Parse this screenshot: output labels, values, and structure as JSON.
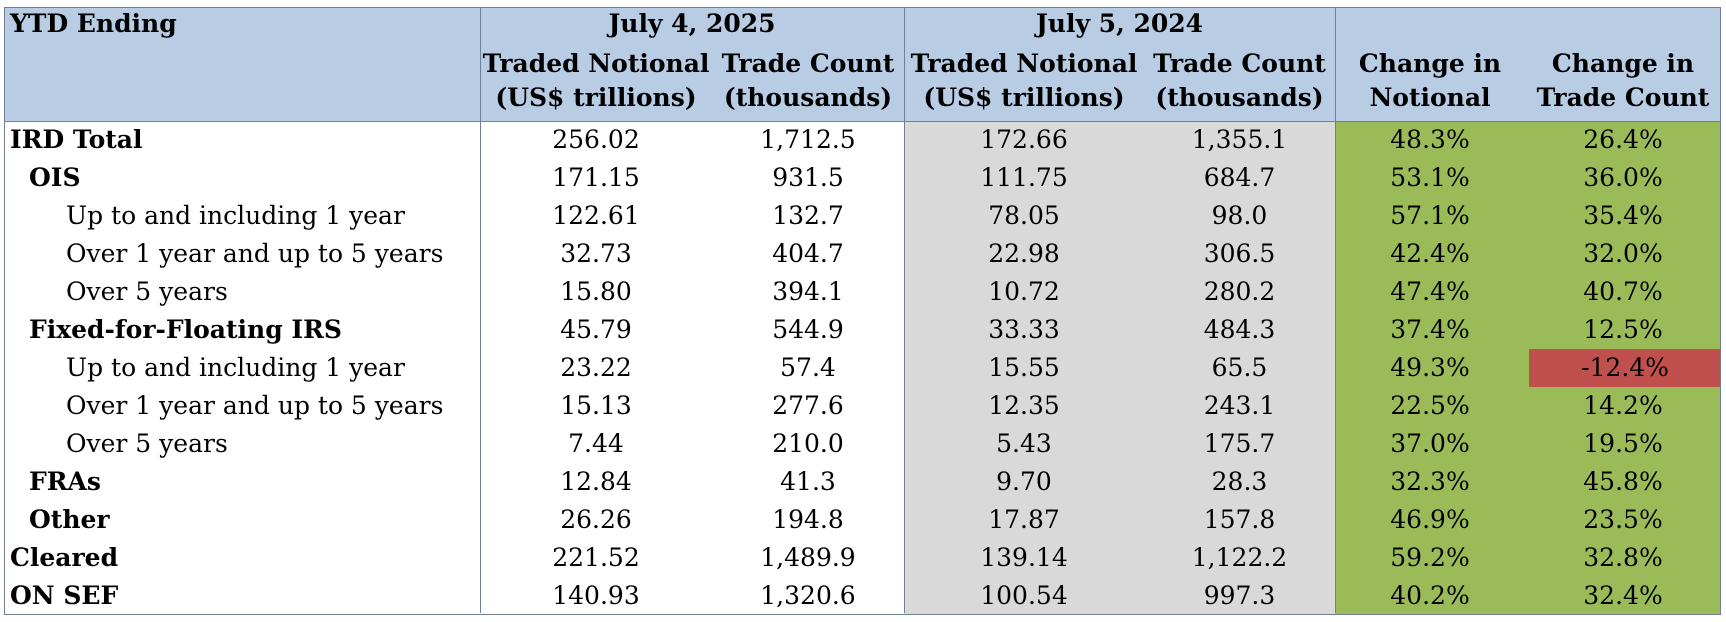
{
  "header": {
    "ytd_label": "YTD Ending",
    "period_2025": "July 4, 2025",
    "period_2024": "July 5, 2024",
    "notional_l1": "Traded Notional",
    "notional_l2": "(US$ trillions)",
    "count_l1": "Trade Count",
    "count_l2": "(thousands)",
    "chg_notional_l1": "Change in",
    "chg_notional_l2": "Notional",
    "chg_count_l1": "Change in",
    "chg_count_l2": "Trade Count"
  },
  "rows": [
    {
      "label": "IRD Total",
      "n25": "256.02",
      "c25": "1,712.5",
      "n24": "172.66",
      "c24": "1,355.1",
      "chn": "48.3%",
      "chc": "26.4%"
    },
    {
      "label": "OIS",
      "n25": "171.15",
      "c25": "931.5",
      "n24": "111.75",
      "c24": "684.7",
      "chn": "53.1%",
      "chc": "36.0%"
    },
    {
      "label": "Up to and including 1 year",
      "n25": "122.61",
      "c25": "132.7",
      "n24": "78.05",
      "c24": "98.0",
      "chn": "57.1%",
      "chc": "35.4%"
    },
    {
      "label": "Over 1 year and up to 5 years",
      "n25": "32.73",
      "c25": "404.7",
      "n24": "22.98",
      "c24": "306.5",
      "chn": "42.4%",
      "chc": "32.0%"
    },
    {
      "label": "Over 5 years",
      "n25": "15.80",
      "c25": "394.1",
      "n24": "10.72",
      "c24": "280.2",
      "chn": "47.4%",
      "chc": "40.7%"
    },
    {
      "label": "Fixed-for-Floating IRS",
      "n25": "45.79",
      "c25": "544.9",
      "n24": "33.33",
      "c24": "484.3",
      "chn": "37.4%",
      "chc": "12.5%"
    },
    {
      "label": "Up to and including 1 year",
      "n25": "23.22",
      "c25": "57.4",
      "n24": "15.55",
      "c24": "65.5",
      "chn": "49.3%",
      "chc": "-12.4%"
    },
    {
      "label": "Over 1 year and up to 5 years",
      "n25": "15.13",
      "c25": "277.6",
      "n24": "12.35",
      "c24": "243.1",
      "chn": "22.5%",
      "chc": "14.2%"
    },
    {
      "label": "Over 5 years",
      "n25": "7.44",
      "c25": "210.0",
      "n24": "5.43",
      "c24": "175.7",
      "chn": "37.0%",
      "chc": "19.5%"
    },
    {
      "label": "FRAs",
      "n25": "12.84",
      "c25": "41.3",
      "n24": "9.70",
      "c24": "28.3",
      "chn": "32.3%",
      "chc": "45.8%"
    },
    {
      "label": "Other",
      "n25": "26.26",
      "c25": "194.8",
      "n24": "17.87",
      "c24": "157.8",
      "chn": "46.9%",
      "chc": "23.5%"
    },
    {
      "label": "Cleared",
      "n25": "221.52",
      "c25": "1,489.9",
      "n24": "139.14",
      "c24": "1,122.2",
      "chn": "59.2%",
      "chc": "32.8%"
    },
    {
      "label": "ON SEF",
      "n25": "140.93",
      "c25": "1,320.6",
      "n24": "100.54",
      "c24": "997.3",
      "chn": "40.2%",
      "chc": "32.4%"
    }
  ],
  "colors": {
    "header_bg": "#b8cce4",
    "prior_year_bg": "#d9d9d9",
    "change_bg": "#9bbb59",
    "negative_bg": "#c0504d"
  }
}
